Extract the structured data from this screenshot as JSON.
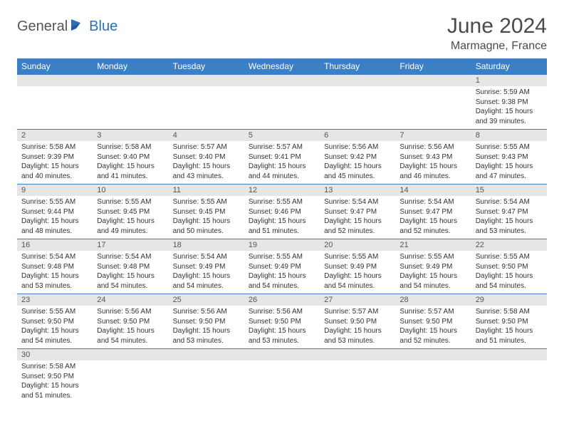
{
  "brand": {
    "part1": "General",
    "part2": "Blue"
  },
  "title": "June 2024",
  "location": "Marmagne, France",
  "colors": {
    "header_bg": "#3b7fc4",
    "header_text": "#ffffff",
    "daynum_bg": "#e6e6e6",
    "border": "#3b7fc4",
    "text": "#333333",
    "brand_accent": "#2d6fb5"
  },
  "day_names": [
    "Sunday",
    "Monday",
    "Tuesday",
    "Wednesday",
    "Thursday",
    "Friday",
    "Saturday"
  ],
  "weeks": [
    [
      null,
      null,
      null,
      null,
      null,
      null,
      {
        "n": "1",
        "sr": "Sunrise: 5:59 AM",
        "ss": "Sunset: 9:38 PM",
        "d1": "Daylight: 15 hours",
        "d2": "and 39 minutes."
      }
    ],
    [
      {
        "n": "2",
        "sr": "Sunrise: 5:58 AM",
        "ss": "Sunset: 9:39 PM",
        "d1": "Daylight: 15 hours",
        "d2": "and 40 minutes."
      },
      {
        "n": "3",
        "sr": "Sunrise: 5:58 AM",
        "ss": "Sunset: 9:40 PM",
        "d1": "Daylight: 15 hours",
        "d2": "and 41 minutes."
      },
      {
        "n": "4",
        "sr": "Sunrise: 5:57 AM",
        "ss": "Sunset: 9:40 PM",
        "d1": "Daylight: 15 hours",
        "d2": "and 43 minutes."
      },
      {
        "n": "5",
        "sr": "Sunrise: 5:57 AM",
        "ss": "Sunset: 9:41 PM",
        "d1": "Daylight: 15 hours",
        "d2": "and 44 minutes."
      },
      {
        "n": "6",
        "sr": "Sunrise: 5:56 AM",
        "ss": "Sunset: 9:42 PM",
        "d1": "Daylight: 15 hours",
        "d2": "and 45 minutes."
      },
      {
        "n": "7",
        "sr": "Sunrise: 5:56 AM",
        "ss": "Sunset: 9:43 PM",
        "d1": "Daylight: 15 hours",
        "d2": "and 46 minutes."
      },
      {
        "n": "8",
        "sr": "Sunrise: 5:55 AM",
        "ss": "Sunset: 9:43 PM",
        "d1": "Daylight: 15 hours",
        "d2": "and 47 minutes."
      }
    ],
    [
      {
        "n": "9",
        "sr": "Sunrise: 5:55 AM",
        "ss": "Sunset: 9:44 PM",
        "d1": "Daylight: 15 hours",
        "d2": "and 48 minutes."
      },
      {
        "n": "10",
        "sr": "Sunrise: 5:55 AM",
        "ss": "Sunset: 9:45 PM",
        "d1": "Daylight: 15 hours",
        "d2": "and 49 minutes."
      },
      {
        "n": "11",
        "sr": "Sunrise: 5:55 AM",
        "ss": "Sunset: 9:45 PM",
        "d1": "Daylight: 15 hours",
        "d2": "and 50 minutes."
      },
      {
        "n": "12",
        "sr": "Sunrise: 5:55 AM",
        "ss": "Sunset: 9:46 PM",
        "d1": "Daylight: 15 hours",
        "d2": "and 51 minutes."
      },
      {
        "n": "13",
        "sr": "Sunrise: 5:54 AM",
        "ss": "Sunset: 9:47 PM",
        "d1": "Daylight: 15 hours",
        "d2": "and 52 minutes."
      },
      {
        "n": "14",
        "sr": "Sunrise: 5:54 AM",
        "ss": "Sunset: 9:47 PM",
        "d1": "Daylight: 15 hours",
        "d2": "and 52 minutes."
      },
      {
        "n": "15",
        "sr": "Sunrise: 5:54 AM",
        "ss": "Sunset: 9:47 PM",
        "d1": "Daylight: 15 hours",
        "d2": "and 53 minutes."
      }
    ],
    [
      {
        "n": "16",
        "sr": "Sunrise: 5:54 AM",
        "ss": "Sunset: 9:48 PM",
        "d1": "Daylight: 15 hours",
        "d2": "and 53 minutes."
      },
      {
        "n": "17",
        "sr": "Sunrise: 5:54 AM",
        "ss": "Sunset: 9:48 PM",
        "d1": "Daylight: 15 hours",
        "d2": "and 54 minutes."
      },
      {
        "n": "18",
        "sr": "Sunrise: 5:54 AM",
        "ss": "Sunset: 9:49 PM",
        "d1": "Daylight: 15 hours",
        "d2": "and 54 minutes."
      },
      {
        "n": "19",
        "sr": "Sunrise: 5:55 AM",
        "ss": "Sunset: 9:49 PM",
        "d1": "Daylight: 15 hours",
        "d2": "and 54 minutes."
      },
      {
        "n": "20",
        "sr": "Sunrise: 5:55 AM",
        "ss": "Sunset: 9:49 PM",
        "d1": "Daylight: 15 hours",
        "d2": "and 54 minutes."
      },
      {
        "n": "21",
        "sr": "Sunrise: 5:55 AM",
        "ss": "Sunset: 9:49 PM",
        "d1": "Daylight: 15 hours",
        "d2": "and 54 minutes."
      },
      {
        "n": "22",
        "sr": "Sunrise: 5:55 AM",
        "ss": "Sunset: 9:50 PM",
        "d1": "Daylight: 15 hours",
        "d2": "and 54 minutes."
      }
    ],
    [
      {
        "n": "23",
        "sr": "Sunrise: 5:55 AM",
        "ss": "Sunset: 9:50 PM",
        "d1": "Daylight: 15 hours",
        "d2": "and 54 minutes."
      },
      {
        "n": "24",
        "sr": "Sunrise: 5:56 AM",
        "ss": "Sunset: 9:50 PM",
        "d1": "Daylight: 15 hours",
        "d2": "and 54 minutes."
      },
      {
        "n": "25",
        "sr": "Sunrise: 5:56 AM",
        "ss": "Sunset: 9:50 PM",
        "d1": "Daylight: 15 hours",
        "d2": "and 53 minutes."
      },
      {
        "n": "26",
        "sr": "Sunrise: 5:56 AM",
        "ss": "Sunset: 9:50 PM",
        "d1": "Daylight: 15 hours",
        "d2": "and 53 minutes."
      },
      {
        "n": "27",
        "sr": "Sunrise: 5:57 AM",
        "ss": "Sunset: 9:50 PM",
        "d1": "Daylight: 15 hours",
        "d2": "and 53 minutes."
      },
      {
        "n": "28",
        "sr": "Sunrise: 5:57 AM",
        "ss": "Sunset: 9:50 PM",
        "d1": "Daylight: 15 hours",
        "d2": "and 52 minutes."
      },
      {
        "n": "29",
        "sr": "Sunrise: 5:58 AM",
        "ss": "Sunset: 9:50 PM",
        "d1": "Daylight: 15 hours",
        "d2": "and 51 minutes."
      }
    ],
    [
      {
        "n": "30",
        "sr": "Sunrise: 5:58 AM",
        "ss": "Sunset: 9:50 PM",
        "d1": "Daylight: 15 hours",
        "d2": "and 51 minutes."
      },
      null,
      null,
      null,
      null,
      null,
      null
    ]
  ]
}
